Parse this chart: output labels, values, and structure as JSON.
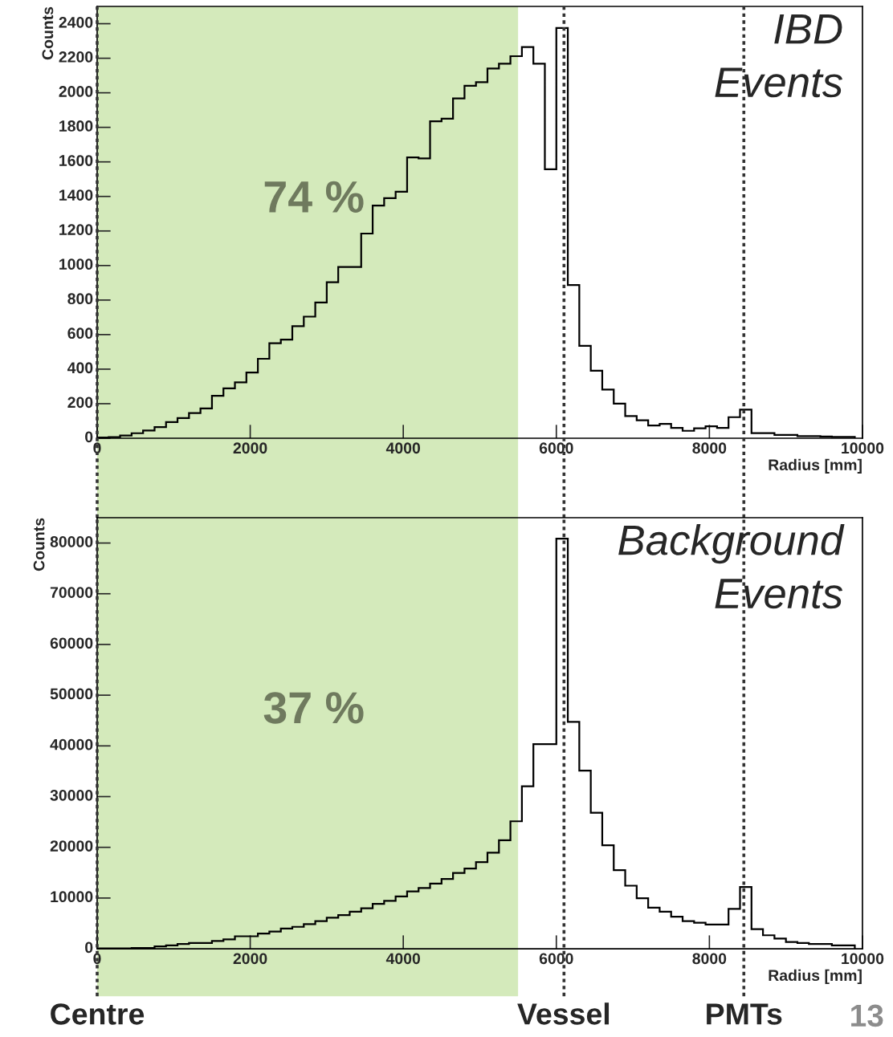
{
  "chart_data": [
    {
      "type": "histogram",
      "xlabel": "Radius [mm]",
      "ylabel": "Counts",
      "color": "#000000",
      "bins": [
        0,
        150,
        300,
        450,
        600,
        750,
        900,
        1050,
        1200,
        1350,
        1500,
        1650,
        1800,
        1950,
        2100,
        2250,
        2400,
        2550,
        2700,
        2850,
        3000,
        3150,
        3300,
        3450,
        3600,
        3750,
        3900,
        4050,
        4200,
        4350,
        4500,
        4650,
        4800,
        4950,
        5100,
        5250,
        5400,
        5550,
        5700,
        5850,
        6000,
        6150,
        6300,
        6450,
        6600,
        6750,
        6900,
        7050,
        7200,
        7350,
        7500,
        7650,
        7800,
        7950,
        8100,
        8250,
        8400,
        8550,
        8700,
        8850,
        9000,
        9150,
        9300,
        9450,
        9600,
        9750,
        9900
      ],
      "values": [
        4,
        6,
        16,
        29,
        45,
        64,
        94,
        117,
        146,
        172,
        246,
        289,
        324,
        380,
        460,
        550,
        571,
        649,
        704,
        786,
        903,
        992,
        992,
        1185,
        1347,
        1390,
        1427,
        1626,
        1620,
        1835,
        1850,
        1967,
        2041,
        2061,
        2141,
        2168,
        2212,
        2265,
        2168,
        1557,
        2375,
        887,
        535,
        391,
        282,
        200,
        128,
        104,
        74,
        83,
        60,
        43,
        57,
        69,
        60,
        122,
        166,
        30,
        30,
        19,
        19,
        12,
        12,
        10,
        8,
        8
      ],
      "xlim": [
        0,
        10000
      ],
      "ylim": [
        0,
        2500
      ],
      "xticks": [
        0,
        2000,
        4000,
        6000,
        8000,
        10000
      ],
      "yticks": [
        0,
        200,
        400,
        600,
        800,
        1000,
        1200,
        1400,
        1600,
        1800,
        2000,
        2200,
        2400
      ],
      "bands": [
        {
          "axis": "x",
          "from": 0,
          "to": 5500,
          "color": "#d4eabb"
        }
      ],
      "ref_lines": [
        {
          "axis": "x",
          "value": 0,
          "line_style": "dotted"
        },
        {
          "axis": "x",
          "value": 6100,
          "line_style": "dotted"
        },
        {
          "axis": "x",
          "value": 8450,
          "line_style": "dotted"
        }
      ],
      "annotations": [
        "IBD\nEvents",
        "74 %"
      ]
    },
    {
      "type": "histogram",
      "xlabel": "Radius [mm]",
      "ylabel": "Counts",
      "color": "#000000",
      "bins": [
        0,
        150,
        300,
        450,
        600,
        750,
        900,
        1050,
        1200,
        1350,
        1500,
        1650,
        1800,
        1950,
        2100,
        2250,
        2400,
        2550,
        2700,
        2850,
        3000,
        3150,
        3300,
        3450,
        3600,
        3750,
        3900,
        4050,
        4200,
        4350,
        4500,
        4650,
        4800,
        4950,
        5100,
        5250,
        5400,
        5550,
        5700,
        5850,
        6000,
        6150,
        6300,
        6450,
        6600,
        6750,
        6900,
        7050,
        7200,
        7350,
        7500,
        7650,
        7800,
        7950,
        8100,
        8250,
        8400,
        8550,
        8700,
        8850,
        9000,
        9150,
        9300,
        9450,
        9600,
        9750,
        9900
      ],
      "values": [
        50,
        80,
        100,
        130,
        150,
        450,
        650,
        930,
        1130,
        1130,
        1530,
        1860,
        2460,
        2460,
        2990,
        3390,
        3990,
        4320,
        4850,
        5450,
        6120,
        6650,
        7310,
        7980,
        8840,
        9440,
        10310,
        11300,
        11970,
        12830,
        13760,
        14960,
        15820,
        17090,
        18950,
        21410,
        25130,
        32050,
        40360,
        40360,
        80850,
        44750,
        35110,
        26800,
        20420,
        15490,
        12430,
        9970,
        8110,
        7310,
        6320,
        5450,
        5120,
        4790,
        4790,
        7850,
        12170,
        3860,
        2660,
        2000,
        1330,
        1130,
        930,
        930,
        660,
        660
      ],
      "xlim": [
        0,
        10000
      ],
      "ylim": [
        0,
        85000
      ],
      "xticks": [
        0,
        2000,
        4000,
        6000,
        8000,
        10000
      ],
      "yticks": [
        0,
        10000,
        20000,
        30000,
        40000,
        50000,
        60000,
        70000,
        80000
      ],
      "bands": [
        {
          "axis": "x",
          "from": 0,
          "to": 5500,
          "color": "#d4eabb"
        }
      ],
      "ref_lines": [
        {
          "axis": "x",
          "value": 0,
          "label": "Centre",
          "line_style": "dotted"
        },
        {
          "axis": "x",
          "value": 6100,
          "label": "Vessel",
          "line_style": "dotted"
        },
        {
          "axis": "x",
          "value": 8450,
          "label": "PMTs",
          "line_style": "dotted"
        }
      ],
      "annotations": [
        "Background\nEvents",
        "37 %",
        "13"
      ]
    }
  ]
}
